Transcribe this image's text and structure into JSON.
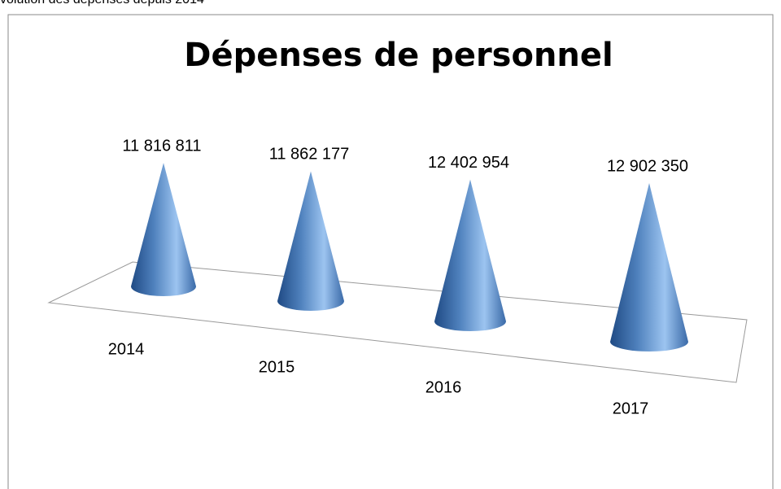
{
  "header": {
    "text": "volution des dépenses depuis 2014"
  },
  "chart_data": {
    "type": "bar",
    "title": "Dépenses de personnel",
    "categories": [
      "2014",
      "2015",
      "2016",
      "2017"
    ],
    "values": [
      11816811,
      11862177,
      12402954,
      12902350
    ],
    "value_labels": [
      "11 816 811",
      "11 862 177",
      "12 402 954",
      "12 902 350"
    ],
    "color": "#4f81bd"
  }
}
